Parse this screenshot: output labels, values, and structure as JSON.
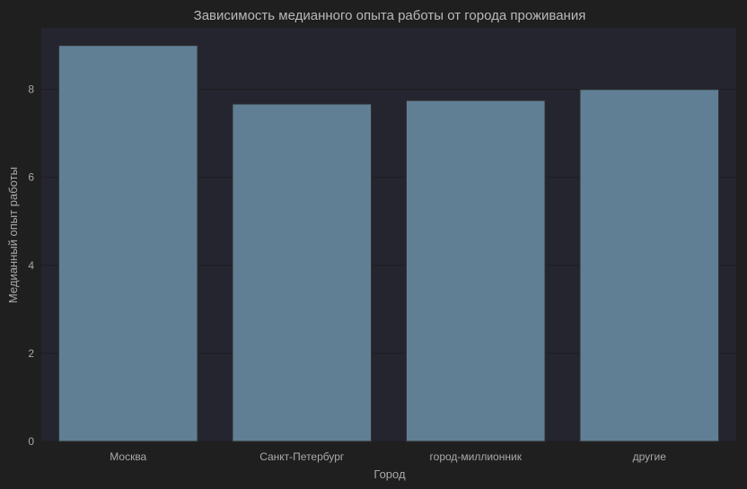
{
  "chart_data": {
    "type": "bar",
    "title": "Зависимость медианного опыта работы от города проживания",
    "xlabel": "Город",
    "ylabel": "Медианный опыт работы",
    "categories": [
      "Москва",
      "Санкт-Петербург",
      "город-миллионник",
      "другие"
    ],
    "values": [
      9,
      7.67,
      7.75,
      8
    ],
    "ylim": [
      0,
      9.4
    ],
    "yticks": [
      0,
      2,
      4,
      6,
      8
    ],
    "grid": true,
    "colors": {
      "background": "#1f1f1f",
      "plot_area": "#24252e",
      "bar": "#607f95",
      "bar_edge": "#2d2d2d",
      "text": "#a9a9a9"
    }
  }
}
